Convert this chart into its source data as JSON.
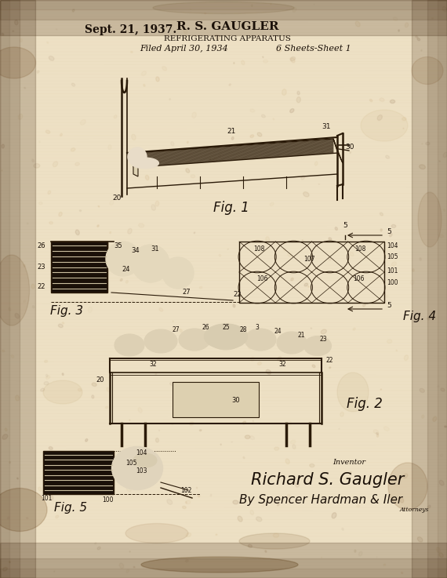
{
  "bg_color": "#e8dcc8",
  "ink_color": "#1a1008",
  "line_color": "#2a1a08",
  "title_date": "Sept. 21, 1937.",
  "inventor_name": "R. S. GAUGLER",
  "patent_title": "REFRIGERATING APPARATUS",
  "filed_text": "Filed April 30, 1934",
  "sheets_text": "6 Sheets-Sheet 1",
  "fig1_label": "Fig. 1",
  "fig2_label": "Fig. 2",
  "fig3_label": "Fig. 3",
  "fig4_label": "Fig. 4",
  "fig5_label": "Fig. 5",
  "inventor_label": "Inventor",
  "signature1": "Richard S. Gaugler",
  "signature2": "By Spencer Hardman & Iler",
  "atty_label": "Attorneys",
  "paper_base": "#ede0c4",
  "paper_dark": "#c8b080",
  "stain_color": "#a07840"
}
